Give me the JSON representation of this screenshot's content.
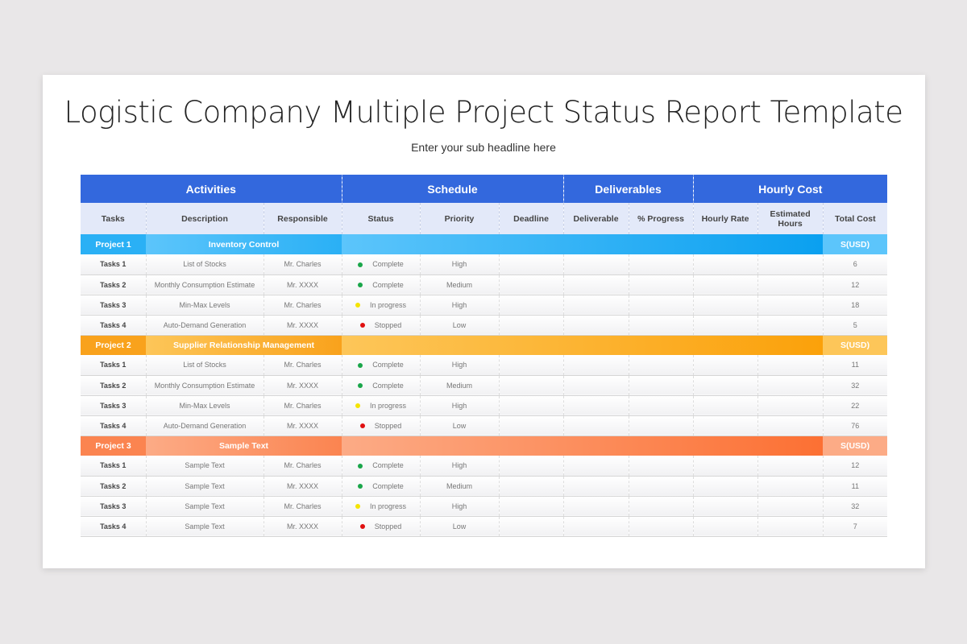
{
  "title": "Logistic Company Multiple Project Status Report Template",
  "subtitle": "Enter your sub headline here",
  "groups": [
    "Activities",
    "Schedule",
    "Deliverables",
    "Hourly Cost"
  ],
  "columns": [
    "Tasks",
    "Description",
    "Responsible",
    "Status",
    "Priority",
    "Deadline",
    "Deliverable",
    "% Progress",
    "Hourly Rate",
    "Estimated Hours",
    "Total Cost"
  ],
  "status_colors": {
    "Complete": "#1aa64a",
    "In progress": "#f5e400",
    "Stopped": "#e01010"
  },
  "projects": [
    {
      "label": "Project 1",
      "name": "Inventory Control",
      "currency": "S(USD)",
      "colors": [
        "#2ab0f5",
        "#5cc5fb",
        "#0aa0f0"
      ],
      "tasks": [
        {
          "task": "Tasks 1",
          "description": "List of Stocks",
          "responsible": "Mr. Charles",
          "status": "Complete",
          "priority": "High",
          "total": "6"
        },
        {
          "task": "Tasks 2",
          "description": "Monthly Consumption Estimate",
          "responsible": "Mr. XXXX",
          "status": "Complete",
          "priority": "Medium",
          "total": "12"
        },
        {
          "task": "Tasks 3",
          "description": "Min-Max Levels",
          "responsible": "Mr. Charles",
          "status": "In progress",
          "priority": "High",
          "total": "18"
        },
        {
          "task": "Tasks 4",
          "description": "Auto-Demand Generation",
          "responsible": "Mr. XXXX",
          "status": "Stopped",
          "priority": "Low",
          "total": "5"
        }
      ]
    },
    {
      "label": "Project 2",
      "name": "Supplier Relationship Management",
      "currency": "S(USD)",
      "colors": [
        "#f9a21c",
        "#fdc659",
        "#fba10a"
      ],
      "tasks": [
        {
          "task": "Tasks 1",
          "description": "List of Stocks",
          "responsible": "Mr. Charles",
          "status": "Complete",
          "priority": "High",
          "total": "11"
        },
        {
          "task": "Tasks 2",
          "description": "Monthly Consumption Estimate",
          "responsible": "Mr. XXXX",
          "status": "Complete",
          "priority": "Medium",
          "total": "32"
        },
        {
          "task": "Tasks 3",
          "description": "Min-Max Levels",
          "responsible": "Mr. Charles",
          "status": "In progress",
          "priority": "High",
          "total": "22"
        },
        {
          "task": "Tasks 4",
          "description": "Auto-Demand Generation",
          "responsible": "Mr. XXXX",
          "status": "Stopped",
          "priority": "Low",
          "total": "76"
        }
      ]
    },
    {
      "label": "Project 3",
      "name": "Sample Text",
      "currency": "S(USD)",
      "colors": [
        "#fb8450",
        "#fcab86",
        "#fc7033"
      ],
      "tasks": [
        {
          "task": "Tasks 1",
          "description": "Sample Text",
          "responsible": "Mr. Charles",
          "status": "Complete",
          "priority": "High",
          "total": "12"
        },
        {
          "task": "Tasks 2",
          "description": "Sample Text",
          "responsible": "Mr. XXXX",
          "status": "Complete",
          "priority": "Medium",
          "total": "11"
        },
        {
          "task": "Tasks 3",
          "description": "Sample Text",
          "responsible": "Mr. Charles",
          "status": "In progress",
          "priority": "High",
          "total": "32"
        },
        {
          "task": "Tasks 4",
          "description": "Sample Text",
          "responsible": "Mr. XXXX",
          "status": "Stopped",
          "priority": "Low",
          "total": "7"
        }
      ]
    }
  ]
}
